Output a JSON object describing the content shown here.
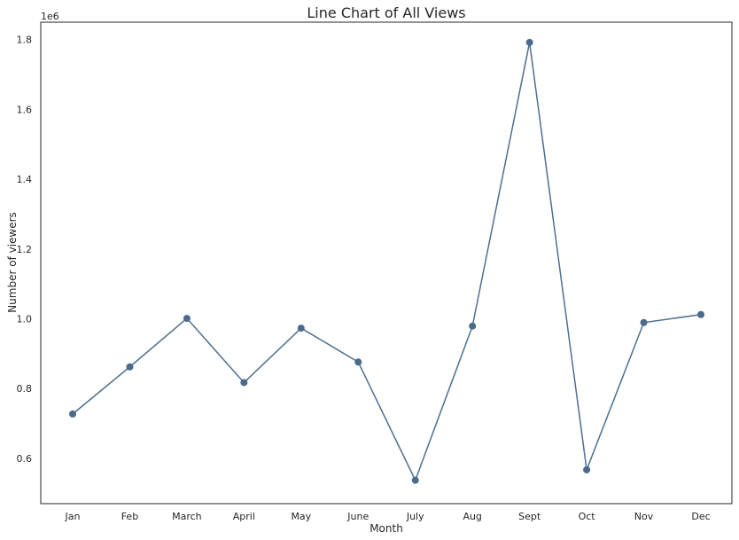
{
  "chart_data": {
    "type": "line",
    "title": "Line Chart of All Views",
    "xlabel": "Month",
    "ylabel": "Number of viewers",
    "y_offset_label": "1e6",
    "categories": [
      "Jan",
      "Feb",
      "March",
      "April",
      "May",
      "June",
      "July",
      "Aug",
      "Sept",
      "Oct",
      "Nov",
      "Dec"
    ],
    "series": [
      {
        "values": [
          727000,
          862000,
          1001000,
          817000,
          973000,
          876000,
          537000,
          979000,
          1792000,
          567000,
          989000,
          1012000
        ]
      }
    ],
    "ylim": [
      470000,
      1850000
    ],
    "yticks": [
      600000,
      800000,
      1000000,
      1200000,
      1400000,
      1600000,
      1800000
    ],
    "ytick_labels": [
      "0.6",
      "0.8",
      "1.0",
      "1.2",
      "1.4",
      "1.6",
      "1.8"
    ],
    "grid": false,
    "line_color": "#4c6f8f",
    "marker_color": "#4c6a8a"
  }
}
